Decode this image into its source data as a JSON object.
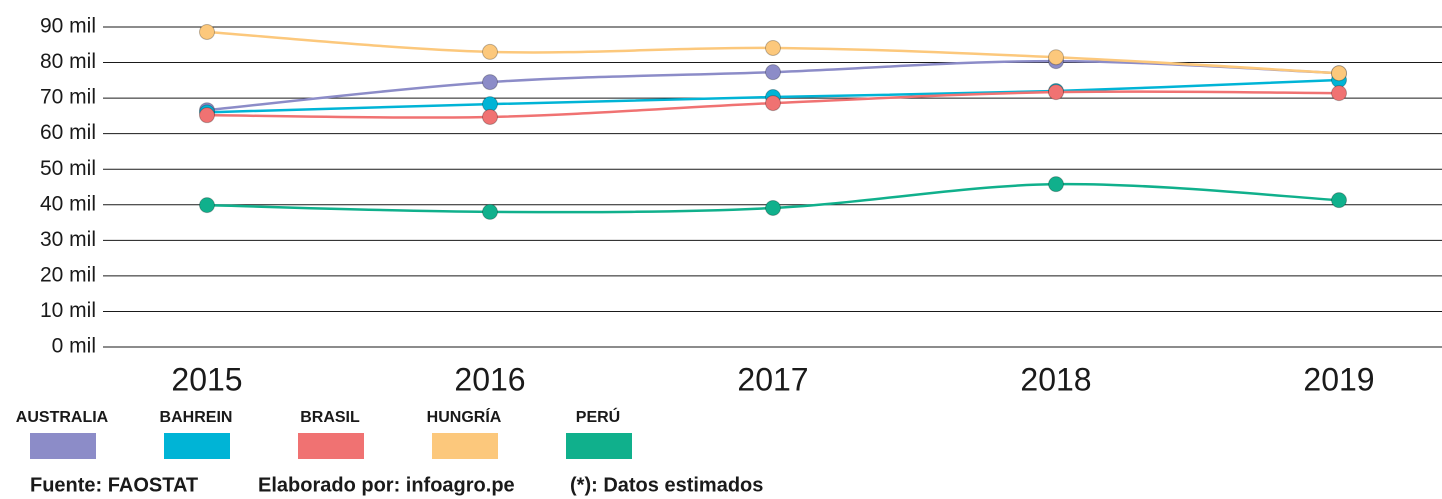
{
  "chart_data": {
    "type": "line",
    "categories": [
      "2015",
      "2016",
      "2017",
      "2018",
      "2019"
    ],
    "series": [
      {
        "name": "AUSTRALIA",
        "color": "#8c8cc8",
        "values": [
          66600,
          74500,
          77300,
          80400,
          77000
        ]
      },
      {
        "name": "BAHREIN",
        "color": "#00b4d6",
        "values": [
          66000,
          68300,
          70300,
          72000,
          75100
        ]
      },
      {
        "name": "BRASIL",
        "color": "#f07272",
        "values": [
          65200,
          64700,
          68600,
          71700,
          71400
        ]
      },
      {
        "name": "HUNGRÍA",
        "color": "#fcc87c",
        "values": [
          88600,
          83000,
          84100,
          81500,
          77000
        ]
      },
      {
        "name": "PERÚ",
        "color": "#10b08c",
        "values": [
          39900,
          38000,
          39100,
          45800,
          41300
        ]
      }
    ],
    "ylim": [
      0,
      90000
    ],
    "yticks": [
      {
        "value": 0,
        "label": "0 mil"
      },
      {
        "value": 10000,
        "label": "10 mil"
      },
      {
        "value": 20000,
        "label": "20 mil"
      },
      {
        "value": 30000,
        "label": "30 mil"
      },
      {
        "value": 40000,
        "label": "40 mil"
      },
      {
        "value": 50000,
        "label": "50 mil"
      },
      {
        "value": 60000,
        "label": "60 mil"
      },
      {
        "value": 70000,
        "label": "70 mil"
      },
      {
        "value": 80000,
        "label": "80 mil"
      },
      {
        "value": 90000,
        "label": "90 mil"
      }
    ],
    "grid": true,
    "source": "Fuente:  FAOSTAT",
    "credit": "Elaborado por: infoagro.pe",
    "note": "(*): Datos estimados"
  }
}
